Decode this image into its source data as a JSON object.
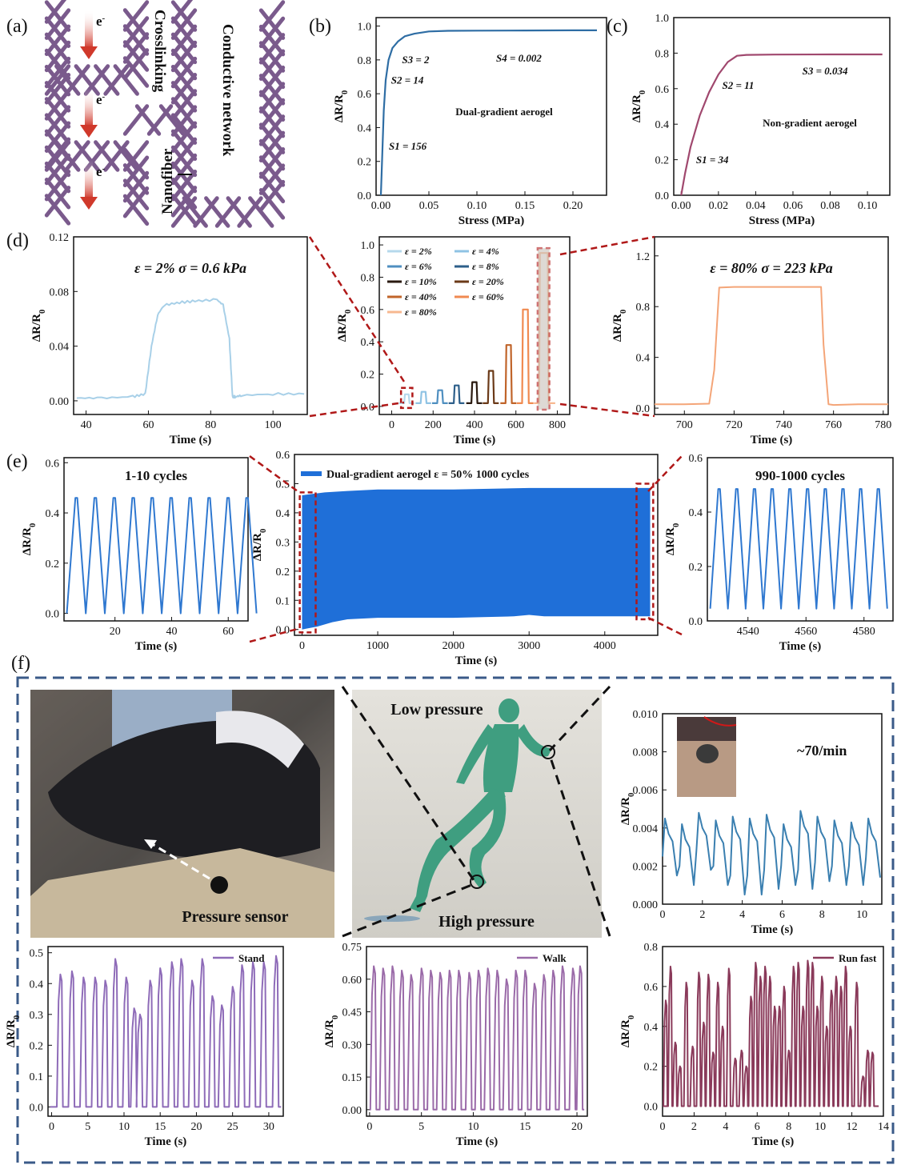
{
  "panel_labels": {
    "a": "(a)",
    "b": "(b)",
    "c": "(c)",
    "d": "(d)",
    "e": "(e)",
    "f": "(f)"
  },
  "panel_a": {
    "electron_label": "e",
    "electron_sup": "-",
    "crosslinking": "Crosslinking",
    "conductive_network": "Conductive network",
    "nanofiber": "Nanofiber",
    "colors": {
      "fiber": "#7a5a8c",
      "arrow": "#d0392b"
    }
  },
  "panel_f_photo": {
    "pressure_sensor": "Pressure sensor",
    "low_pressure": "Low pressure",
    "high_pressure": "High pressure",
    "heart_rate": "~70/min",
    "colors": {
      "runner": "#3f9e80",
      "heart": "#c81818",
      "frame": "#3a5a88"
    }
  },
  "chart_data": [
    {
      "id": "b",
      "type": "line",
      "x": [
        0,
        0.0015,
        0.003,
        0.005,
        0.008,
        0.012,
        0.018,
        0.025,
        0.035,
        0.05,
        0.07,
        0.1,
        0.15,
        0.2,
        0.225
      ],
      "y": [
        0,
        0.25,
        0.5,
        0.68,
        0.8,
        0.87,
        0.91,
        0.94,
        0.955,
        0.968,
        0.972,
        0.973,
        0.974,
        0.975,
        0.975
      ],
      "xlim": [
        -0.005,
        0.235
      ],
      "ylim": [
        0,
        1.05
      ],
      "xticks": [
        0,
        0.05,
        0.1,
        0.15,
        0.2
      ],
      "yticks": [
        0,
        0.2,
        0.4,
        0.6,
        0.8,
        1.0
      ],
      "xlabel": "Stress (MPa)",
      "ylabel": "ΔR/R₀",
      "legend": "Dual-gradient aerogel",
      "annotations": [
        "S1 = 156",
        "S2 = 14",
        "S3 = 2",
        "S4 = 0.002"
      ],
      "color": "#2e6da4"
    },
    {
      "id": "c",
      "type": "line",
      "x": [
        0,
        0.002,
        0.005,
        0.01,
        0.015,
        0.02,
        0.025,
        0.03,
        0.035,
        0.05,
        0.08,
        0.108
      ],
      "y": [
        0,
        0.12,
        0.27,
        0.45,
        0.58,
        0.68,
        0.75,
        0.785,
        0.79,
        0.792,
        0.793,
        0.793
      ],
      "xlim": [
        -0.004,
        0.112
      ],
      "ylim": [
        0,
        1.0
      ],
      "xticks": [
        0,
        0.02,
        0.04,
        0.06,
        0.08,
        0.1
      ],
      "yticks": [
        0,
        0.2,
        0.4,
        0.6,
        0.8,
        1.0
      ],
      "xlabel": "Stress (MPa)",
      "ylabel": "ΔR/R₀",
      "legend": "Non-gradient aerogel",
      "annotations": [
        "S1 = 34",
        "S2 = 11",
        "S3 = 0.034"
      ],
      "color": "#a0486e"
    },
    {
      "id": "d-left",
      "type": "line",
      "x": [
        37,
        45,
        55,
        59,
        61,
        63,
        65,
        70,
        75,
        82,
        84,
        86,
        87,
        88,
        90,
        100,
        110
      ],
      "y": [
        0.002,
        0.002,
        0.003,
        0.005,
        0.04,
        0.063,
        0.07,
        0.072,
        0.073,
        0.074,
        0.07,
        0.045,
        0.003,
        0.003,
        0.004,
        0.005,
        0.005
      ],
      "xlim": [
        36,
        111
      ],
      "ylim": [
        -0.01,
        0.12
      ],
      "xticks": [
        40,
        60,
        80,
        100
      ],
      "yticks": [
        0,
        0.04,
        0.08,
        0.12
      ],
      "xlabel": "Time (s)",
      "ylabel": "ΔR/R₀",
      "title": "ε = 2%      σ = 0.6 kPa",
      "color": "#a8d0e8"
    },
    {
      "id": "d-center",
      "type": "line",
      "xlim": [
        -60,
        860
      ],
      "ylim": [
        -0.05,
        1.05
      ],
      "xticks": [
        0,
        200,
        400,
        600,
        800
      ],
      "yticks": [
        0,
        0.2,
        0.4,
        0.6,
        0.8,
        1.0
      ],
      "xlabel": "Time (s)",
      "ylabel": "ΔR/R₀",
      "series": [
        {
          "name": "ε = 2%",
          "start": 60,
          "end": 84,
          "peak": 0.075,
          "color": "#b5d8ec"
        },
        {
          "name": "ε = 4%",
          "start": 140,
          "end": 166,
          "peak": 0.09,
          "color": "#8fc3e4"
        },
        {
          "name": "ε = 6%",
          "start": 220,
          "end": 246,
          "peak": 0.1,
          "color": "#4f8fc0"
        },
        {
          "name": "ε = 8%",
          "start": 300,
          "end": 326,
          "peak": 0.13,
          "color": "#2d5f8a"
        },
        {
          "name": "ε = 10%",
          "start": 385,
          "end": 412,
          "peak": 0.15,
          "color": "#2a1a10"
        },
        {
          "name": "ε = 20%",
          "start": 465,
          "end": 492,
          "peak": 0.22,
          "color": "#6b3a18"
        },
        {
          "name": "ε = 40%",
          "start": 550,
          "end": 578,
          "peak": 0.38,
          "color": "#c0642a"
        },
        {
          "name": "ε = 60%",
          "start": 630,
          "end": 660,
          "peak": 0.6,
          "color": "#f08a50"
        },
        {
          "name": "ε = 80%",
          "start": 712,
          "end": 756,
          "peak": 0.95,
          "color": "#f7b890"
        }
      ]
    },
    {
      "id": "d-right",
      "type": "line",
      "x": [
        688,
        700,
        710,
        712,
        714,
        720,
        730,
        740,
        750,
        755,
        756,
        758,
        760,
        770,
        782
      ],
      "y": [
        0.03,
        0.03,
        0.035,
        0.3,
        0.95,
        0.955,
        0.955,
        0.955,
        0.955,
        0.955,
        0.5,
        0.03,
        0.025,
        0.03,
        0.03
      ],
      "xlim": [
        688,
        782
      ],
      "ylim": [
        -0.05,
        1.35
      ],
      "xticks": [
        700,
        720,
        740,
        760,
        780
      ],
      "yticks": [
        0,
        0.4,
        0.8,
        1.2
      ],
      "xlabel": "Time (s)",
      "ylabel": "ΔR/R₀",
      "title": "ε = 80%     σ = 223 kPa",
      "color": "#f4a578"
    },
    {
      "id": "e-left",
      "type": "line",
      "xlim": [
        2,
        67
      ],
      "ylim": [
        -0.03,
        0.62
      ],
      "xticks": [
        20,
        40,
        60
      ],
      "yticks": [
        0,
        0.2,
        0.4,
        0.6
      ],
      "xlabel": "Time (s)",
      "ylabel": "ΔR/R₀",
      "title": "1-10 cycles",
      "cycles": 10,
      "period": 6.7,
      "start": 3,
      "high": 0.46,
      "low": 0.0,
      "color": "#2f78d0"
    },
    {
      "id": "e-center",
      "type": "area",
      "xlim": [
        -100,
        4700
      ],
      "ylim": [
        -0.02,
        0.6
      ],
      "xticks": [
        0,
        1000,
        2000,
        3000,
        4000
      ],
      "yticks": [
        0,
        0.1,
        0.2,
        0.3,
        0.4,
        0.5,
        0.6
      ],
      "xlabel": "Time (s)",
      "ylabel": "ΔR/R₀",
      "legend": "Dual-gradient aerogel     ε = 50%     1000 cycles",
      "upper": {
        "x": [
          0,
          300,
          600,
          1000,
          2000,
          3000,
          4000,
          4600
        ],
        "y": [
          0.46,
          0.47,
          0.475,
          0.48,
          0.48,
          0.485,
          0.485,
          0.485
        ]
      },
      "lower": {
        "x": [
          0,
          200,
          400,
          600,
          1000,
          2000,
          2800,
          3000,
          3200,
          4000,
          4600
        ],
        "y": [
          0.0,
          0.01,
          0.025,
          0.035,
          0.04,
          0.04,
          0.045,
          0.05,
          0.045,
          0.045,
          0.045
        ]
      },
      "color": "#1f6fd8"
    },
    {
      "id": "e-right",
      "type": "line",
      "xlim": [
        4526,
        4590
      ],
      "ylim": [
        0.0,
        0.6
      ],
      "xticks": [
        4540,
        4560,
        4580
      ],
      "yticks": [
        0,
        0.2,
        0.4,
        0.6
      ],
      "xlabel": "Time (s)",
      "ylabel": "ΔR/R₀",
      "title": "990-1000 cycles",
      "cycles": 10,
      "period": 6.1,
      "start": 4527,
      "high": 0.485,
      "low": 0.045,
      "color": "#2f78d0"
    },
    {
      "id": "f-heart",
      "type": "line",
      "xlim": [
        0,
        11
      ],
      "ylim": [
        0,
        0.01
      ],
      "xticks": [
        0,
        2,
        4,
        6,
        8,
        10
      ],
      "yticks": [
        0,
        0.002,
        0.004,
        0.006,
        0.008,
        0.01
      ],
      "xlabel": "Time (s)",
      "ylabel": "ΔR/R₀",
      "beats": [
        0.0,
        0.85,
        1.7,
        2.55,
        3.4,
        4.25,
        5.1,
        5.95,
        6.8,
        7.65,
        8.5,
        9.35,
        10.2
      ],
      "peaks": [
        0.0045,
        0.0042,
        0.0048,
        0.0044,
        0.0046,
        0.0045,
        0.0047,
        0.0042,
        0.0049,
        0.0046,
        0.0044,
        0.0043,
        0.0045
      ],
      "troughs": [
        0.0015,
        0.001,
        0.0018,
        0.001,
        0.0005,
        0.0005,
        0.0008,
        0.001,
        0.0008,
        0.0012,
        0.001,
        0.001,
        0.0014
      ],
      "color": "#3a7fb0"
    },
    {
      "id": "f-stand",
      "type": "line",
      "xlim": [
        -0.5,
        32
      ],
      "ylim": [
        -0.03,
        0.52
      ],
      "xticks": [
        0,
        5,
        10,
        15,
        20,
        25,
        30
      ],
      "yticks": [
        0,
        0.1,
        0.2,
        0.3,
        0.4,
        0.5
      ],
      "xlabel": "Time (s)",
      "ylabel": "ΔR/R₀",
      "legend": "Stand",
      "peak_times": [
        1.2,
        2.8,
        4.4,
        6,
        7.4,
        8.8,
        10.3,
        11.4,
        12.2,
        13.6,
        15,
        16.6,
        17.9,
        19.4,
        20.8,
        22.2,
        23.5,
        25,
        26.3,
        27.8,
        29.3,
        31
      ],
      "peak_values": [
        0.43,
        0.44,
        0.42,
        0.42,
        0.41,
        0.48,
        0.42,
        0.32,
        0.3,
        0.41,
        0.45,
        0.47,
        0.48,
        0.41,
        0.48,
        0.36,
        0.33,
        0.39,
        0.46,
        0.47,
        0.47,
        0.49
      ],
      "color": "#8e6bb8"
    },
    {
      "id": "f-walk",
      "type": "line",
      "xlim": [
        -0.3,
        21
      ],
      "ylim": [
        -0.03,
        0.75
      ],
      "xticks": [
        0,
        5,
        10,
        15,
        20
      ],
      "yticks": [
        0,
        0.15,
        0.3,
        0.45,
        0.6,
        0.75
      ],
      "xlabel": "Time (s)",
      "ylabel": "ΔR/R₀",
      "legend": "Walk",
      "peak_times": [
        0.4,
        1.3,
        2.2,
        3.1,
        4.0,
        5.0,
        5.9,
        6.8,
        7.7,
        8.6,
        9.6,
        10.5,
        11.4,
        12.3,
        13.2,
        14.1,
        15.0,
        15.9,
        16.8,
        17.7,
        18.6,
        19.6,
        20.3
      ],
      "peak_values": [
        0.66,
        0.65,
        0.66,
        0.64,
        0.62,
        0.65,
        0.64,
        0.63,
        0.64,
        0.64,
        0.63,
        0.64,
        0.65,
        0.64,
        0.6,
        0.64,
        0.64,
        0.58,
        0.62,
        0.64,
        0.66,
        0.65,
        0.66
      ],
      "color": "#9a6aa8"
    },
    {
      "id": "f-run",
      "type": "line",
      "xlim": [
        0,
        14
      ],
      "ylim": [
        -0.05,
        0.8
      ],
      "xticks": [
        0,
        2,
        4,
        6,
        8,
        10,
        12,
        14
      ],
      "yticks": [
        0,
        0.2,
        0.4,
        0.6,
        0.8
      ],
      "xlabel": "Time (s)",
      "ylabel": "ΔR/R₀",
      "legend": "Run fast",
      "peak_times": [
        0.2,
        0.5,
        0.8,
        1.1,
        1.5,
        1.9,
        2.3,
        2.6,
        2.9,
        3.2,
        3.5,
        3.8,
        4.2,
        4.6,
        5.0,
        5.3,
        5.6,
        5.9,
        6.2,
        6.5,
        6.8,
        7.1,
        7.4,
        7.7,
        8.0,
        8.3,
        8.6,
        8.9,
        9.2,
        9.5,
        9.8,
        10.1,
        10.4,
        10.7,
        11.0,
        11.3,
        11.6,
        11.9,
        12.3,
        12.7,
        13.0,
        13.3
      ],
      "peak_values": [
        0.53,
        0.7,
        0.32,
        0.2,
        0.62,
        0.3,
        0.67,
        0.42,
        0.66,
        0.27,
        0.62,
        0.4,
        0.69,
        0.24,
        0.28,
        0.2,
        0.55,
        0.72,
        0.65,
        0.7,
        0.65,
        0.5,
        0.5,
        0.6,
        0.28,
        0.7,
        0.72,
        0.5,
        0.73,
        0.72,
        0.5,
        0.65,
        0.4,
        0.58,
        0.65,
        0.6,
        0.7,
        0.4,
        0.62,
        0.15,
        0.28,
        0.27
      ],
      "color": "#8a3a5a"
    }
  ]
}
